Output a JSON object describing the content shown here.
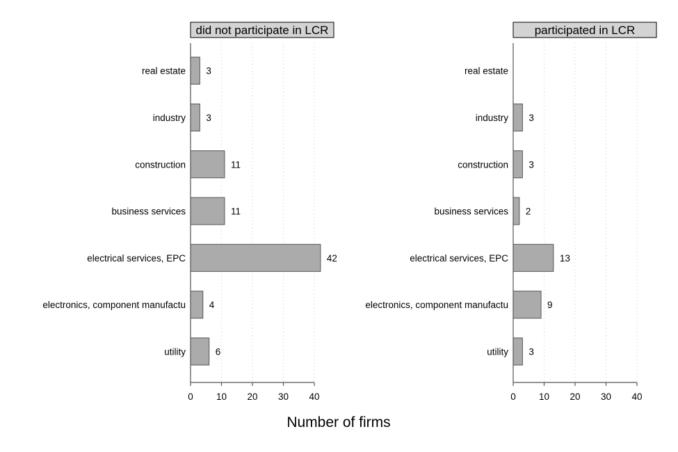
{
  "chart_data": {
    "type": "bar",
    "orientation": "horizontal",
    "xlabel": "Number of firms",
    "categories": [
      "real estate",
      "industry",
      "construction",
      "business services",
      "electrical services, EPC",
      "electronics, component manufactu",
      "utility"
    ],
    "xlim": [
      0,
      40
    ],
    "xticks": [
      0,
      10,
      20,
      30,
      40
    ],
    "grid": true,
    "panels": [
      {
        "title": "did not participate in LCR",
        "values": [
          3,
          3,
          11,
          11,
          42,
          4,
          6
        ]
      },
      {
        "title": "participated in LCR",
        "values": [
          0,
          3,
          3,
          2,
          13,
          9,
          3
        ],
        "value_labels": [
          "",
          "3",
          "3",
          "2",
          "13",
          "9",
          "3"
        ]
      }
    ]
  }
}
